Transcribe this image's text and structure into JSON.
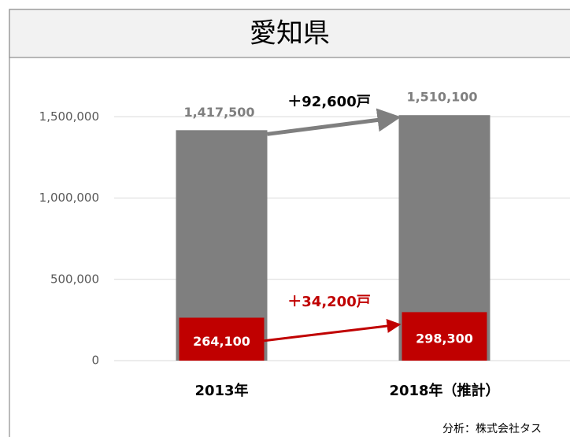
{
  "chart_data": {
    "type": "bar",
    "title": "愛知県",
    "categories": [
      "2013年",
      "2018年（推計）"
    ],
    "series": [
      {
        "color": "#7f7f7f",
        "values": [
          1417500,
          1510100
        ],
        "value_labels": [
          "1,417,500",
          "1,510,100"
        ]
      },
      {
        "color": "#c00000",
        "values": [
          264100,
          298300
        ],
        "value_labels": [
          "264,100",
          "298,300"
        ]
      }
    ],
    "annotations": [
      "＋92,600戸",
      "＋34,200戸"
    ],
    "source": "分析：株式会社タス",
    "ylim": [
      0,
      1700000
    ],
    "yticks": [
      0,
      {
        "value": 500000,
        "label": "500,000"
      },
      {
        "value": 1000000,
        "label": "1,000,000"
      },
      {
        "value": 1500000,
        "label": "1,500,000"
      }
    ],
    "grid": true
  }
}
